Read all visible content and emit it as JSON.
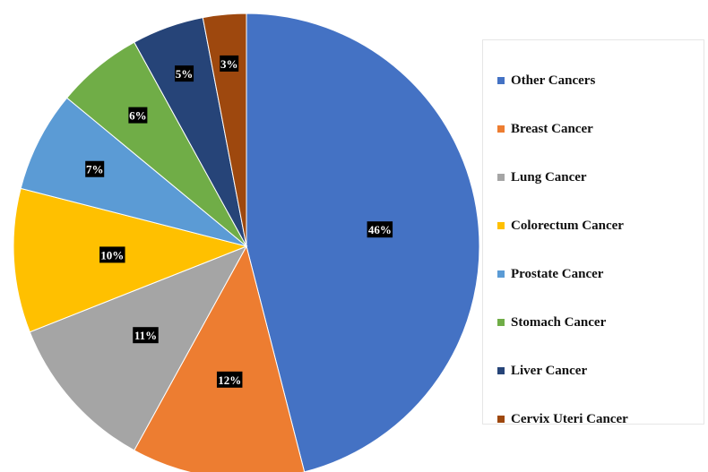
{
  "chart_data": {
    "type": "pie",
    "title": "",
    "start_angle_deg": 0,
    "direction": "clockwise",
    "slices": [
      {
        "name": "Other Cancers",
        "value": 46,
        "label": "46%",
        "color": "#4472C4"
      },
      {
        "name": "Breast Cancer",
        "value": 12,
        "label": "12%",
        "color": "#ED7D31"
      },
      {
        "name": "Lung Cancer",
        "value": 11,
        "label": "11%",
        "color": "#A5A5A5"
      },
      {
        "name": "Colorectum Cancer",
        "value": 10,
        "label": "10%",
        "color": "#FFC000"
      },
      {
        "name": "Prostate Cancer",
        "value": 7,
        "label": "7%",
        "color": "#5B9BD5"
      },
      {
        "name": "Stomach Cancer",
        "value": 6,
        "label": "6%",
        "color": "#70AD47"
      },
      {
        "name": "Liver Cancer",
        "value": 5,
        "label": "5%",
        "color": "#264478"
      },
      {
        "name": "Cervix Uteri Cancer",
        "value": 3,
        "label": "3%",
        "color": "#9E480E"
      }
    ],
    "legend_position": "right"
  }
}
